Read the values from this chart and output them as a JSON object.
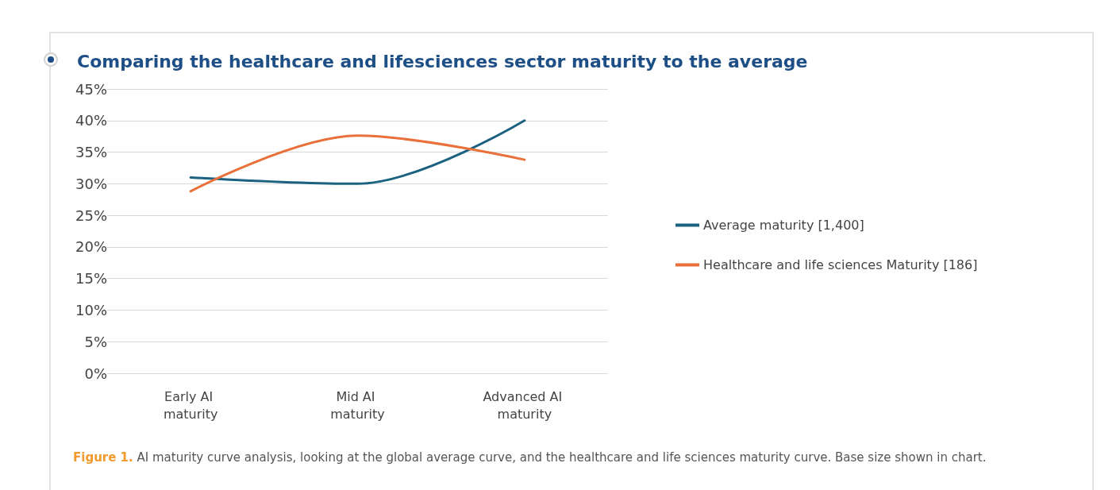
{
  "chart_data": {
    "type": "line",
    "title": "Comparing the healthcare and lifesciences sector maturity to the average",
    "categories": [
      "Early AI maturity",
      "Mid AI maturity",
      "Advanced AI maturity"
    ],
    "series": [
      {
        "name": "Average maturity [1,400]",
        "color": "#1b6180",
        "values": [
          31,
          30,
          40
        ]
      },
      {
        "name": "Healthcare and life sciences Maturity [186]",
        "color": "#e9703a",
        "values": [
          28.8,
          37.6,
          33.8
        ]
      }
    ],
    "ylim": [
      0,
      45
    ],
    "yticks": [
      {
        "value": 0,
        "label": "0%"
      },
      {
        "value": 5,
        "label": "5%"
      },
      {
        "value": 10,
        "label": "10%"
      },
      {
        "value": 15,
        "label": "15%"
      },
      {
        "value": 20,
        "label": "20%"
      },
      {
        "value": 25,
        "label": "25%"
      },
      {
        "value": 30,
        "label": "30%"
      },
      {
        "value": 35,
        "label": "35%"
      },
      {
        "value": 40,
        "label": "40%"
      },
      {
        "value": 45,
        "label": "45%"
      }
    ],
    "grid": "y",
    "legend": "right",
    "marker": "none",
    "line_style": "solid",
    "annotations": [
      "Figure 1. AI maturity curve analysis, looking at the global average curve, and the healthcare and life sciences maturity curve. Base size shown in chart."
    ]
  }
}
